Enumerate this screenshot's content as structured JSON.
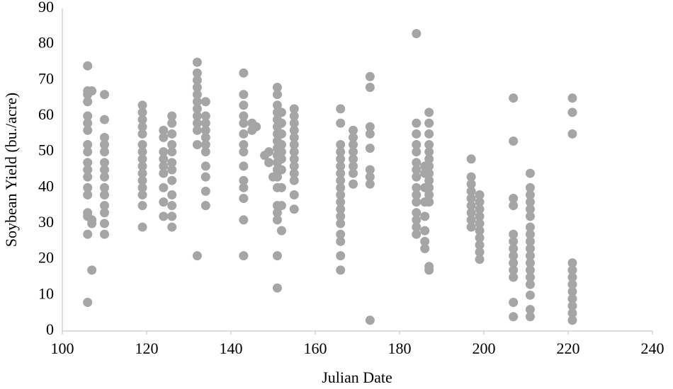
{
  "chart_data": {
    "type": "scatter",
    "x_label": "Julian Date",
    "y_label": "Soybean Yield (bu./acre)",
    "color": "#a5a5a5",
    "xlim": [
      100,
      240
    ],
    "xticks": [
      100,
      120,
      140,
      160,
      180,
      200,
      220,
      240
    ],
    "ylim": [
      0,
      90
    ],
    "yticks": [
      0,
      10,
      20,
      30,
      40,
      50,
      60,
      70,
      80,
      90
    ],
    "grid": false,
    "x": [
      106,
      106,
      106,
      106,
      106,
      106,
      106,
      106,
      106,
      106,
      106,
      106,
      106,
      106,
      106,
      106,
      106,
      106,
      107,
      107,
      107,
      107,
      110,
      110,
      110,
      110,
      110,
      110,
      110,
      110,
      110,
      110,
      110,
      110,
      110,
      110,
      119,
      119,
      119,
      119,
      119,
      119,
      119,
      119,
      119,
      119,
      119,
      119,
      119,
      119,
      119,
      124,
      124,
      124,
      124,
      124,
      124,
      124,
      124,
      124,
      126,
      126,
      126,
      126,
      126,
      126,
      126,
      126,
      126,
      126,
      126,
      126,
      132,
      132,
      132,
      132,
      132,
      132,
      132,
      132,
      132,
      132,
      132,
      132,
      134,
      134,
      134,
      134,
      134,
      134,
      134,
      134,
      134,
      134,
      134,
      143,
      143,
      143,
      143,
      143,
      143,
      143,
      143,
      143,
      143,
      143,
      143,
      143,
      143,
      145,
      145,
      146,
      148,
      149,
      149,
      150,
      151,
      151,
      151,
      151,
      151,
      151,
      151,
      151,
      151,
      151,
      151,
      151,
      151,
      151,
      151,
      151,
      151,
      151,
      151,
      152,
      152,
      152,
      152,
      152,
      152,
      152,
      152,
      152,
      152,
      155,
      155,
      155,
      155,
      155,
      155,
      155,
      155,
      155,
      155,
      155,
      155,
      155,
      166,
      166,
      166,
      166,
      166,
      166,
      166,
      166,
      166,
      166,
      166,
      166,
      166,
      166,
      166,
      166,
      166,
      166,
      169,
      169,
      169,
      169,
      169,
      169,
      169,
      169,
      173,
      173,
      173,
      173,
      173,
      173,
      173,
      173,
      173,
      184,
      184,
      184,
      184,
      184,
      184,
      184,
      184,
      184,
      184,
      184,
      184,
      184,
      184,
      184,
      186,
      186,
      186,
      186,
      186,
      186,
      186,
      186,
      187,
      187,
      187,
      187,
      187,
      187,
      187,
      187,
      187,
      187,
      187,
      187,
      187,
      187,
      197,
      197,
      197,
      197,
      197,
      197,
      197,
      197,
      197,
      199,
      199,
      199,
      199,
      199,
      199,
      199,
      199,
      199,
      199,
      207,
      207,
      207,
      207,
      207,
      207,
      207,
      207,
      207,
      207,
      207,
      207,
      207,
      211,
      211,
      211,
      211,
      211,
      211,
      211,
      211,
      211,
      211,
      211,
      211,
      211,
      211,
      211,
      211,
      211,
      211,
      221,
      221,
      221,
      221,
      221,
      221,
      221,
      221,
      221,
      221,
      221,
      221
    ],
    "y": [
      74,
      67,
      66,
      64,
      60,
      58,
      56,
      52,
      50,
      47,
      45,
      43,
      40,
      38,
      33,
      32,
      27,
      8,
      67,
      31,
      30,
      17,
      66,
      59,
      54,
      52,
      50,
      47,
      45,
      43,
      40,
      38,
      35,
      33,
      30,
      27,
      63,
      61,
      59,
      57,
      55,
      52,
      50,
      48,
      46,
      44,
      42,
      40,
      38,
      35,
      29,
      56,
      54,
      50,
      48,
      46,
      44,
      40,
      36,
      32,
      60,
      58,
      55,
      52,
      50,
      47,
      45,
      42,
      38,
      35,
      32,
      29,
      75,
      72,
      70,
      68,
      66,
      64,
      62,
      60,
      58,
      56,
      52,
      21,
      64,
      60,
      58,
      56,
      54,
      52,
      50,
      46,
      43,
      39,
      35,
      72,
      66,
      63,
      60,
      58,
      55,
      52,
      50,
      46,
      42,
      40,
      37,
      31,
      21,
      58,
      56,
      57,
      49,
      47,
      50,
      43,
      68,
      66,
      63,
      61,
      59,
      57,
      55,
      53,
      51,
      49,
      47,
      45,
      43,
      40,
      35,
      33,
      31,
      21,
      12,
      61,
      58,
      55,
      52,
      50,
      48,
      45,
      40,
      35,
      28,
      62,
      60,
      58,
      56,
      54,
      52,
      50,
      48,
      46,
      44,
      42,
      38,
      34,
      62,
      58,
      52,
      50,
      48,
      46,
      44,
      42,
      40,
      38,
      36,
      34,
      32,
      30,
      27,
      25,
      21,
      17,
      56,
      54,
      52,
      50,
      48,
      46,
      44,
      41,
      71,
      68,
      57,
      55,
      51,
      45,
      43,
      41,
      3,
      83,
      58,
      55,
      52,
      50,
      47,
      45,
      43,
      40,
      38,
      36,
      33,
      31,
      29,
      27,
      46,
      44,
      40,
      36,
      32,
      28,
      25,
      23,
      61,
      58,
      55,
      52,
      50,
      48,
      46,
      44,
      42,
      40,
      38,
      36,
      18,
      17,
      48,
      43,
      41,
      39,
      37,
      35,
      33,
      31,
      29,
      38,
      36,
      34,
      32,
      30,
      28,
      26,
      24,
      22,
      20,
      65,
      53,
      37,
      35,
      27,
      25,
      23,
      21,
      19,
      17,
      15,
      8,
      4,
      44,
      40,
      38,
      36,
      34,
      32,
      29,
      27,
      25,
      23,
      21,
      19,
      17,
      15,
      13,
      10,
      6,
      4,
      65,
      61,
      55,
      19,
      17,
      15,
      13,
      11,
      9,
      7,
      5,
      3
    ]
  }
}
